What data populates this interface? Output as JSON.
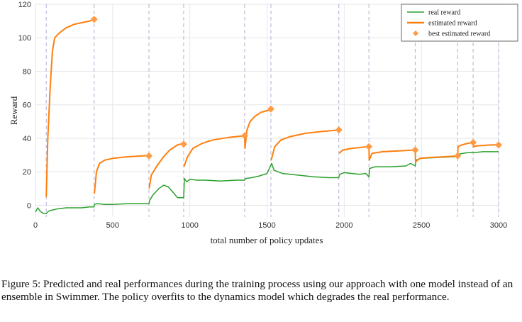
{
  "chart_data": {
    "type": "line",
    "xlabel": "total number of policy updates",
    "ylabel": "Reward",
    "xlim": [
      0,
      3000
    ],
    "ylim": [
      -7,
      120
    ],
    "xticks": [
      0,
      500,
      1000,
      1500,
      2000,
      2500,
      3000
    ],
    "yticks": [
      0,
      20,
      40,
      60,
      80,
      100,
      120
    ],
    "grid": true,
    "legend_position": "top-right",
    "dashed_vertical_lines_x": [
      70,
      380,
      735,
      960,
      1355,
      1525,
      1965,
      2160,
      2460,
      2735,
      2835,
      3000
    ],
    "series": [
      {
        "name": "real reward",
        "color": "#2ca02c",
        "points": [
          [
            0,
            -4
          ],
          [
            15,
            -1.5
          ],
          [
            30,
            -3.5
          ],
          [
            45,
            -4.5
          ],
          [
            60,
            -5
          ],
          [
            70,
            -5
          ],
          [
            85,
            -3.5
          ],
          [
            100,
            -3
          ],
          [
            150,
            -2
          ],
          [
            200,
            -1.5
          ],
          [
            250,
            -1.5
          ],
          [
            300,
            -1.5
          ],
          [
            350,
            -1
          ],
          [
            380,
            -1
          ],
          [
            382,
            0.5
          ],
          [
            400,
            1
          ],
          [
            450,
            0.5
          ],
          [
            500,
            0.5
          ],
          [
            600,
            1
          ],
          [
            700,
            1
          ],
          [
            735,
            1
          ],
          [
            740,
            3
          ],
          [
            760,
            6
          ],
          [
            800,
            10
          ],
          [
            830,
            12
          ],
          [
            860,
            11
          ],
          [
            890,
            8
          ],
          [
            920,
            4.5
          ],
          [
            960,
            4.5
          ],
          [
            965,
            16
          ],
          [
            980,
            14
          ],
          [
            1000,
            15.5
          ],
          [
            1050,
            15
          ],
          [
            1100,
            15
          ],
          [
            1200,
            14.5
          ],
          [
            1300,
            15
          ],
          [
            1355,
            15
          ],
          [
            1360,
            16
          ],
          [
            1400,
            16.5
          ],
          [
            1450,
            17.5
          ],
          [
            1500,
            19
          ],
          [
            1520,
            23
          ],
          [
            1530,
            25
          ],
          [
            1545,
            21
          ],
          [
            1600,
            19
          ],
          [
            1700,
            18
          ],
          [
            1800,
            17
          ],
          [
            1900,
            16.5
          ],
          [
            1965,
            16.5
          ],
          [
            1970,
            18.5
          ],
          [
            2000,
            19.5
          ],
          [
            2050,
            19
          ],
          [
            2100,
            18.5
          ],
          [
            2140,
            19
          ],
          [
            2160,
            17
          ],
          [
            2165,
            22
          ],
          [
            2200,
            23
          ],
          [
            2300,
            23
          ],
          [
            2400,
            23.5
          ],
          [
            2430,
            25
          ],
          [
            2460,
            23.5
          ],
          [
            2465,
            27
          ],
          [
            2500,
            28
          ],
          [
            2600,
            28.5
          ],
          [
            2700,
            29
          ],
          [
            2735,
            29
          ],
          [
            2740,
            30.5
          ],
          [
            2800,
            31.5
          ],
          [
            2835,
            31.5
          ],
          [
            2840,
            31.5
          ],
          [
            2900,
            32
          ],
          [
            3000,
            32
          ]
        ]
      },
      {
        "name": "estimated reward",
        "color": "#ff7f0e",
        "points": [
          [
            70,
            5
          ],
          [
            80,
            40
          ],
          [
            95,
            70
          ],
          [
            110,
            92
          ],
          [
            125,
            100
          ],
          [
            145,
            102
          ],
          [
            170,
            104
          ],
          [
            200,
            106
          ],
          [
            250,
            108
          ],
          [
            300,
            109
          ],
          [
            350,
            110
          ],
          [
            380,
            111
          ],
          [
            382,
            7
          ],
          [
            395,
            20
          ],
          [
            415,
            25
          ],
          [
            450,
            27
          ],
          [
            500,
            28
          ],
          [
            600,
            29
          ],
          [
            700,
            29.5
          ],
          [
            735,
            30
          ],
          [
            737,
            10
          ],
          [
            750,
            18
          ],
          [
            790,
            24
          ],
          [
            830,
            29
          ],
          [
            870,
            33
          ],
          [
            920,
            36
          ],
          [
            960,
            37
          ],
          [
            962,
            23
          ],
          [
            985,
            29
          ],
          [
            1020,
            34
          ],
          [
            1080,
            37
          ],
          [
            1150,
            39
          ],
          [
            1250,
            40.5
          ],
          [
            1355,
            41.5
          ],
          [
            1357,
            34
          ],
          [
            1370,
            45
          ],
          [
            1390,
            50
          ],
          [
            1420,
            53
          ],
          [
            1460,
            55.5
          ],
          [
            1500,
            56.5
          ],
          [
            1525,
            57
          ],
          [
            1527,
            27
          ],
          [
            1550,
            35
          ],
          [
            1590,
            39
          ],
          [
            1650,
            41
          ],
          [
            1750,
            43
          ],
          [
            1850,
            44
          ],
          [
            1965,
            45
          ],
          [
            1967,
            31
          ],
          [
            1990,
            33
          ],
          [
            2050,
            34
          ],
          [
            2100,
            34.5
          ],
          [
            2160,
            35
          ],
          [
            2162,
            27
          ],
          [
            2180,
            31
          ],
          [
            2250,
            32
          ],
          [
            2350,
            32.5
          ],
          [
            2460,
            33
          ],
          [
            2462,
            26
          ],
          [
            2490,
            28
          ],
          [
            2550,
            28.5
          ],
          [
            2650,
            29
          ],
          [
            2735,
            29.5
          ],
          [
            2737,
            35
          ],
          [
            2760,
            36
          ],
          [
            2800,
            37
          ],
          [
            2835,
            37.5
          ],
          [
            2837,
            35
          ],
          [
            2860,
            35.5
          ],
          [
            2950,
            36
          ],
          [
            3000,
            36
          ]
        ]
      },
      {
        "name": "best estimated reward",
        "color": "#ff7f0e",
        "marker": "diamond",
        "points": [
          [
            380,
            111
          ],
          [
            735,
            29.5
          ],
          [
            960,
            36.5
          ],
          [
            1355,
            41.5
          ],
          [
            1525,
            57.5
          ],
          [
            1965,
            45
          ],
          [
            2160,
            35
          ],
          [
            2460,
            33
          ],
          [
            2735,
            29.5
          ],
          [
            2835,
            37.5
          ],
          [
            3000,
            36
          ]
        ]
      }
    ]
  },
  "caption": {
    "text": "Figure 5: Predicted and real performances during the training process using our approach with one model instead of an ensemble in Swimmer. The policy overfits to the dynamics model which degrades the real performance."
  }
}
